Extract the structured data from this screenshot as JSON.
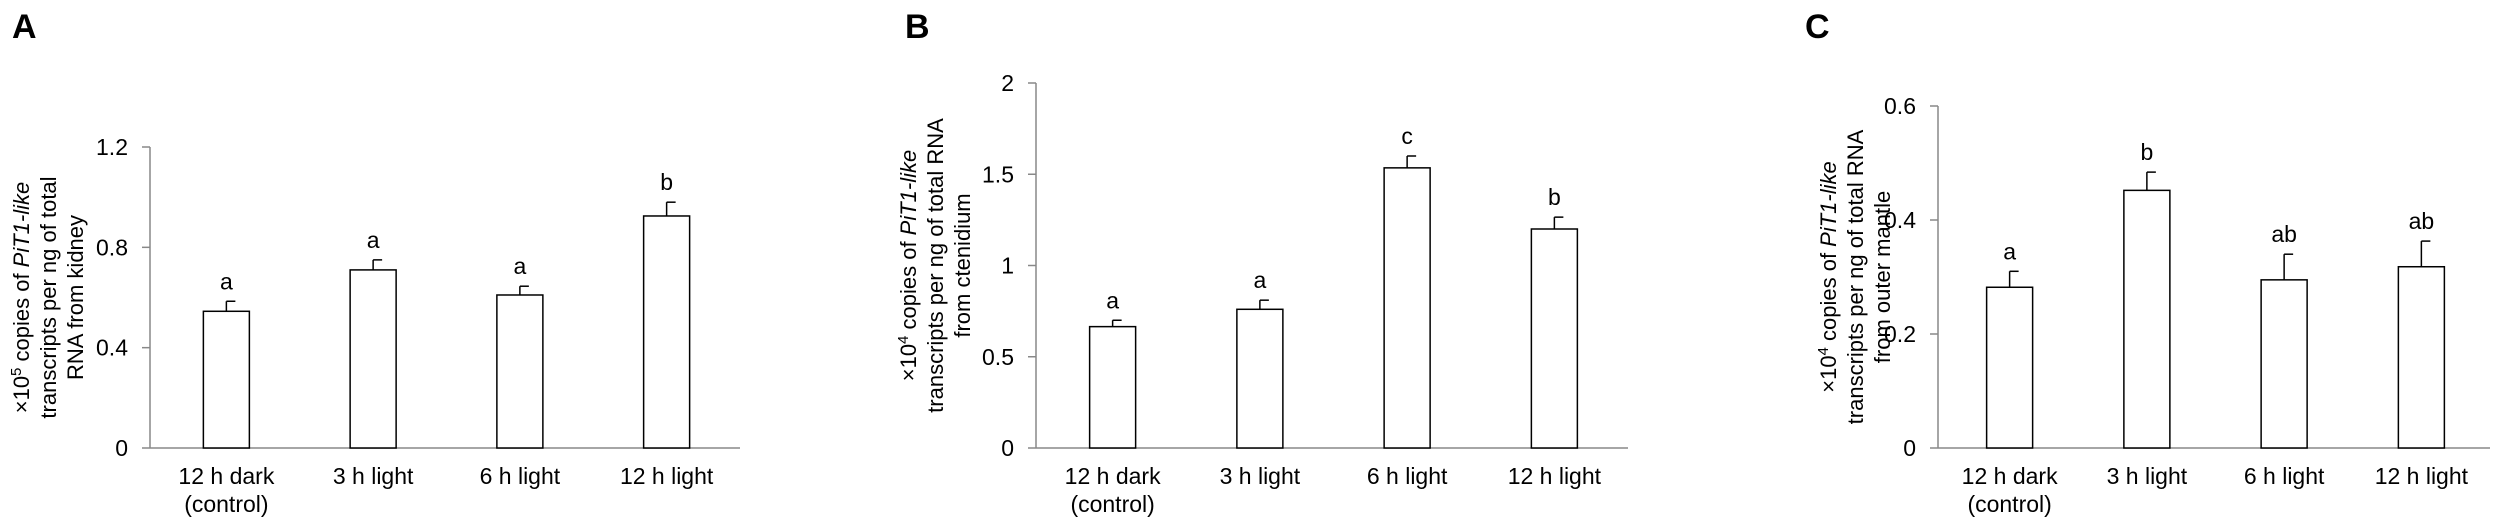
{
  "chart_data": [
    {
      "type": "bar",
      "panel_label": "A",
      "categories": [
        "12 h dark\n(control)",
        "3 h light",
        "6 h light",
        "12 h light"
      ],
      "values": [
        0.545,
        0.71,
        0.61,
        0.925
      ],
      "errors": [
        0.04,
        0.04,
        0.035,
        0.055
      ],
      "significance_letters": [
        "a",
        "a",
        "a",
        "b"
      ],
      "ylabel_lines": [
        [
          {
            "t": "×10"
          },
          {
            "t": "5",
            "sup": true
          },
          {
            "t": " copies of "
          },
          {
            "t": "PiT1-like",
            "italic": true
          }
        ],
        [
          {
            "t": "transcripts per ng of total"
          }
        ],
        [
          {
            "t": "RNA from kidney"
          }
        ]
      ],
      "ylim": [
        0,
        1.2
      ],
      "yticks": [
        0,
        0.4,
        0.8,
        1.2
      ],
      "ytick_labels": [
        "0",
        "0.4",
        "0.8",
        "1.2"
      ],
      "grid": false,
      "bar_color": "#ffffff"
    },
    {
      "type": "bar",
      "panel_label": "B",
      "categories": [
        "12 h dark\n(control)",
        "3 h light",
        "6 h light",
        "12 h light"
      ],
      "values": [
        0.665,
        0.76,
        1.535,
        1.2
      ],
      "errors": [
        0.035,
        0.05,
        0.065,
        0.065
      ],
      "significance_letters": [
        "a",
        "a",
        "c",
        "b"
      ],
      "ylabel_lines": [
        [
          {
            "t": "×10"
          },
          {
            "t": "4",
            "sup": true
          },
          {
            "t": " copies of "
          },
          {
            "t": "PiT1-like",
            "italic": true
          }
        ],
        [
          {
            "t": "transcripts per ng of total RNA"
          }
        ],
        [
          {
            "t": "from ctenidium"
          }
        ]
      ],
      "ylim": [
        0,
        2
      ],
      "yticks": [
        0,
        0.5,
        1,
        1.5,
        2
      ],
      "ytick_labels": [
        "0",
        "0.5",
        "1",
        "1.5",
        "2"
      ],
      "grid": false,
      "bar_color": "#ffffff"
    },
    {
      "type": "bar",
      "panel_label": "C",
      "categories": [
        "12 h dark\n(control)",
        "3 h light",
        "6 h light",
        "12 h light"
      ],
      "values": [
        0.282,
        0.452,
        0.295,
        0.318
      ],
      "errors": [
        0.028,
        0.032,
        0.045,
        0.045
      ],
      "significance_letters": [
        "a",
        "b",
        "ab",
        "ab"
      ],
      "ylabel_lines": [
        [
          {
            "t": "×10"
          },
          {
            "t": "4",
            "sup": true
          },
          {
            "t": " copies of "
          },
          {
            "t": "PiT1-like",
            "italic": true
          }
        ],
        [
          {
            "t": "transcripts per ng of total RNA"
          }
        ],
        [
          {
            "t": "from outer mantle"
          }
        ]
      ],
      "ylim": [
        0,
        0.6
      ],
      "yticks": [
        0,
        0.2,
        0.4,
        0.6
      ],
      "ytick_labels": [
        "0",
        "0.2",
        "0.4",
        "0.6"
      ],
      "grid": false,
      "bar_color": "#ffffff"
    }
  ]
}
